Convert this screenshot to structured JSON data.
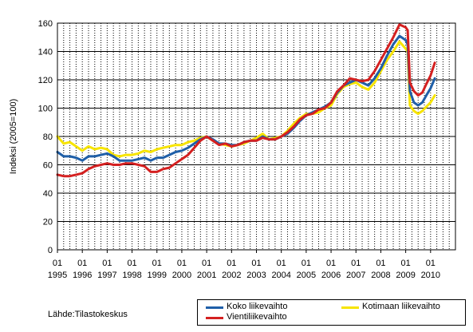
{
  "chart_data": {
    "type": "line",
    "title": "",
    "ylabel": "Indeksi (2005=100)",
    "xlabel": "",
    "ylim": [
      0,
      160
    ],
    "yticks": [
      0,
      20,
      40,
      60,
      80,
      100,
      120,
      140,
      160
    ],
    "xlim": [
      1995.0,
      2011.0
    ],
    "year_ticks": [
      "1995",
      "1996",
      "1997",
      "1998",
      "1999",
      "2000",
      "2001",
      "2002",
      "2003",
      "2004",
      "2005",
      "2006",
      "2007",
      "2008",
      "2009",
      "2010"
    ],
    "month_tick_label": "01",
    "grid": true,
    "legend_placement": "bottom-right",
    "series": [
      {
        "name": "Koko liikevaihto",
        "color": "#1f5fa8",
        "points": [
          [
            1995.0,
            69
          ],
          [
            1995.25,
            66
          ],
          [
            1995.5,
            66
          ],
          [
            1995.75,
            65
          ],
          [
            1996.0,
            63
          ],
          [
            1996.25,
            66
          ],
          [
            1996.5,
            66
          ],
          [
            1996.75,
            67
          ],
          [
            1997.0,
            68
          ],
          [
            1997.25,
            66
          ],
          [
            1997.5,
            63
          ],
          [
            1997.75,
            63
          ],
          [
            1998.0,
            63
          ],
          [
            1998.25,
            64
          ],
          [
            1998.5,
            65
          ],
          [
            1998.75,
            63
          ],
          [
            1999.0,
            65
          ],
          [
            1999.25,
            65
          ],
          [
            1999.5,
            67
          ],
          [
            1999.75,
            69
          ],
          [
            2000.0,
            70
          ],
          [
            2000.25,
            72
          ],
          [
            2000.5,
            75
          ],
          [
            2000.75,
            78
          ],
          [
            2001.0,
            80
          ],
          [
            2001.25,
            78
          ],
          [
            2001.5,
            75
          ],
          [
            2001.75,
            75
          ],
          [
            2002.0,
            74
          ],
          [
            2002.25,
            74
          ],
          [
            2002.5,
            76
          ],
          [
            2002.75,
            77
          ],
          [
            2003.0,
            77
          ],
          [
            2003.25,
            80
          ],
          [
            2003.5,
            78
          ],
          [
            2003.75,
            78
          ],
          [
            2004.0,
            80
          ],
          [
            2004.25,
            82
          ],
          [
            2004.5,
            86
          ],
          [
            2004.75,
            91
          ],
          [
            2005.0,
            95
          ],
          [
            2005.25,
            97
          ],
          [
            2005.5,
            99
          ],
          [
            2005.75,
            101
          ],
          [
            2006.0,
            104
          ],
          [
            2006.25,
            111
          ],
          [
            2006.5,
            116
          ],
          [
            2006.75,
            118
          ],
          [
            2007.0,
            120
          ],
          [
            2007.25,
            118
          ],
          [
            2007.5,
            116
          ],
          [
            2007.75,
            121
          ],
          [
            2008.0,
            128
          ],
          [
            2008.25,
            137
          ],
          [
            2008.5,
            145
          ],
          [
            2008.75,
            151
          ],
          [
            2009.0,
            148
          ],
          [
            2009.08,
            145
          ],
          [
            2009.17,
            112
          ],
          [
            2009.33,
            104
          ],
          [
            2009.5,
            102
          ],
          [
            2009.67,
            104
          ],
          [
            2009.83,
            109
          ],
          [
            2010.0,
            114
          ],
          [
            2010.17,
            121
          ]
        ]
      },
      {
        "name": "Kotimaan liikevaihto",
        "color": "#f7e400",
        "points": [
          [
            1995.0,
            80
          ],
          [
            1995.25,
            75
          ],
          [
            1995.5,
            76
          ],
          [
            1995.75,
            73
          ],
          [
            1996.0,
            70
          ],
          [
            1996.25,
            73
          ],
          [
            1996.5,
            71
          ],
          [
            1996.75,
            72
          ],
          [
            1997.0,
            71
          ],
          [
            1997.25,
            67
          ],
          [
            1997.5,
            66
          ],
          [
            1997.75,
            67
          ],
          [
            1998.0,
            67
          ],
          [
            1998.25,
            68
          ],
          [
            1998.5,
            70
          ],
          [
            1998.75,
            69
          ],
          [
            1999.0,
            71
          ],
          [
            1999.25,
            72
          ],
          [
            1999.5,
            73
          ],
          [
            1999.75,
            74
          ],
          [
            2000.0,
            74
          ],
          [
            2000.25,
            76
          ],
          [
            2000.5,
            77
          ],
          [
            2000.75,
            79
          ],
          [
            2001.0,
            80
          ],
          [
            2001.25,
            77
          ],
          [
            2001.5,
            75
          ],
          [
            2001.75,
            74
          ],
          [
            2002.0,
            73
          ],
          [
            2002.25,
            74
          ],
          [
            2002.5,
            75
          ],
          [
            2002.75,
            77
          ],
          [
            2003.0,
            79
          ],
          [
            2003.25,
            82
          ],
          [
            2003.5,
            78
          ],
          [
            2003.75,
            79
          ],
          [
            2004.0,
            80
          ],
          [
            2004.25,
            84
          ],
          [
            2004.5,
            89
          ],
          [
            2004.75,
            93
          ],
          [
            2005.0,
            96
          ],
          [
            2005.25,
            96
          ],
          [
            2005.5,
            97
          ],
          [
            2005.75,
            100
          ],
          [
            2006.0,
            102
          ],
          [
            2006.25,
            110
          ],
          [
            2006.5,
            115
          ],
          [
            2006.75,
            117
          ],
          [
            2007.0,
            118
          ],
          [
            2007.25,
            115
          ],
          [
            2007.5,
            113
          ],
          [
            2007.75,
            118
          ],
          [
            2008.0,
            126
          ],
          [
            2008.25,
            134
          ],
          [
            2008.5,
            140
          ],
          [
            2008.75,
            147
          ],
          [
            2009.0,
            142
          ],
          [
            2009.08,
            140
          ],
          [
            2009.17,
            102
          ],
          [
            2009.33,
            98
          ],
          [
            2009.5,
            96
          ],
          [
            2009.67,
            98
          ],
          [
            2009.83,
            101
          ],
          [
            2010.0,
            104
          ],
          [
            2010.17,
            109
          ]
        ]
      },
      {
        "name": "Vientiliikevaihto",
        "color": "#d42020",
        "points": [
          [
            1995.0,
            53
          ],
          [
            1995.25,
            52
          ],
          [
            1995.5,
            52
          ],
          [
            1995.75,
            53
          ],
          [
            1996.0,
            54
          ],
          [
            1996.25,
            57
          ],
          [
            1996.5,
            59
          ],
          [
            1996.75,
            60
          ],
          [
            1997.0,
            61
          ],
          [
            1997.25,
            60
          ],
          [
            1997.5,
            60
          ],
          [
            1997.75,
            61
          ],
          [
            1998.0,
            61
          ],
          [
            1998.25,
            60
          ],
          [
            1998.5,
            59
          ],
          [
            1998.75,
            55
          ],
          [
            1999.0,
            55
          ],
          [
            1999.25,
            57
          ],
          [
            1999.5,
            58
          ],
          [
            1999.75,
            61
          ],
          [
            2000.0,
            64
          ],
          [
            2000.25,
            67
          ],
          [
            2000.5,
            72
          ],
          [
            2000.75,
            77
          ],
          [
            2001.0,
            80
          ],
          [
            2001.25,
            77
          ],
          [
            2001.5,
            74
          ],
          [
            2001.75,
            75
          ],
          [
            2002.0,
            73
          ],
          [
            2002.25,
            74
          ],
          [
            2002.5,
            76
          ],
          [
            2002.75,
            77
          ],
          [
            2003.0,
            77
          ],
          [
            2003.25,
            79
          ],
          [
            2003.5,
            78
          ],
          [
            2003.75,
            78
          ],
          [
            2004.0,
            80
          ],
          [
            2004.25,
            83
          ],
          [
            2004.5,
            87
          ],
          [
            2004.75,
            92
          ],
          [
            2005.0,
            95
          ],
          [
            2005.25,
            96
          ],
          [
            2005.5,
            99
          ],
          [
            2005.75,
            100
          ],
          [
            2006.0,
            104
          ],
          [
            2006.25,
            112
          ],
          [
            2006.5,
            116
          ],
          [
            2006.75,
            121
          ],
          [
            2007.0,
            120
          ],
          [
            2007.25,
            119
          ],
          [
            2007.5,
            120
          ],
          [
            2007.75,
            126
          ],
          [
            2008.0,
            134
          ],
          [
            2008.25,
            142
          ],
          [
            2008.5,
            150
          ],
          [
            2008.75,
            159
          ],
          [
            2009.0,
            157
          ],
          [
            2009.08,
            155
          ],
          [
            2009.17,
            118
          ],
          [
            2009.33,
            112
          ],
          [
            2009.5,
            109
          ],
          [
            2009.67,
            111
          ],
          [
            2009.83,
            117
          ],
          [
            2010.0,
            123
          ],
          [
            2010.17,
            132
          ]
        ]
      }
    ]
  },
  "source": "Lähde:Tilastokeskus"
}
